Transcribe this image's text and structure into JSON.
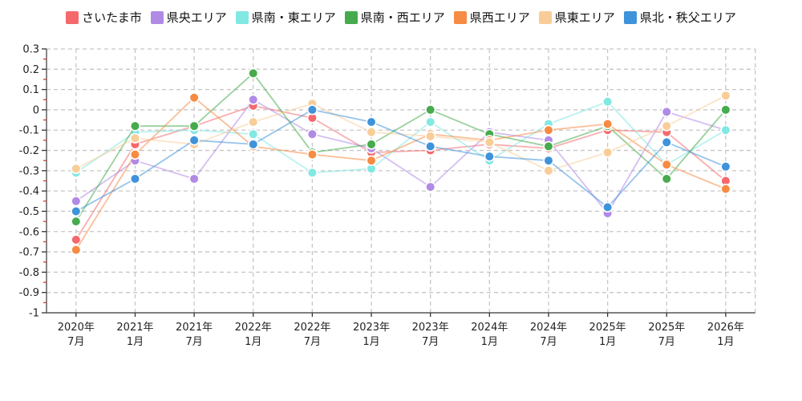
{
  "chart_data": {
    "type": "line",
    "title": "",
    "legend_position": "top",
    "grid": "dashed",
    "x_labels": [
      [
        "2020年",
        "7月"
      ],
      [
        "2021年",
        "1月"
      ],
      [
        "2021年",
        "7月"
      ],
      [
        "2022年",
        "1月"
      ],
      [
        "2022年",
        "7月"
      ],
      [
        "2023年",
        "1月"
      ],
      [
        "2023年",
        "7月"
      ],
      [
        "2024年",
        "1月"
      ],
      [
        "2024年",
        "7月"
      ],
      [
        "2025年",
        "1月"
      ],
      [
        "2025年",
        "7月"
      ],
      [
        "2026年",
        "1月"
      ]
    ],
    "y_ticks": [
      {
        "label": "0.3",
        "value": 0.3
      },
      {
        "label": "0.2",
        "value": 0.2
      },
      {
        "label": "0.1",
        "value": 0.1
      },
      {
        "label": "0",
        "value": 0
      },
      {
        "label": "-0.1",
        "value": -0.1
      },
      {
        "label": "-0.2",
        "value": -0.2
      },
      {
        "label": "-0.3",
        "value": -0.3
      },
      {
        "label": "-0.4",
        "value": -0.4
      },
      {
        "label": "-0.5",
        "value": -0.5
      },
      {
        "label": "-0.6",
        "value": -0.6
      },
      {
        "label": "-0.7",
        "value": -0.7
      },
      {
        "label": "-0.8",
        "value": -0.8
      },
      {
        "label": "-0.9",
        "value": -0.9
      },
      {
        "label": "-1",
        "value": -1
      }
    ],
    "ylim": [
      -1,
      0.3
    ],
    "minor_tick_step": 0.05,
    "minor_tick_color": "#d53a33",
    "axis_color": "#555555",
    "grid_color": "#c6c6c6",
    "series": [
      {
        "name": "さいたま市",
        "color": "#f5696d",
        "values": [
          -0.64,
          -0.17,
          -0.08,
          0.02,
          -0.04,
          -0.21,
          -0.2,
          -0.17,
          -0.19,
          -0.1,
          -0.11,
          -0.35
        ]
      },
      {
        "name": "県央エリア",
        "color": "#b18ae6",
        "values": [
          -0.45,
          -0.25,
          -0.34,
          0.05,
          -0.12,
          -0.19,
          -0.38,
          -0.11,
          -0.15,
          -0.51,
          -0.01,
          -0.1
        ]
      },
      {
        "name": "県南・東エリア",
        "color": "#82e8e2",
        "values": [
          -0.31,
          -0.11,
          -0.1,
          -0.12,
          -0.31,
          -0.29,
          -0.06,
          -0.25,
          -0.07,
          0.04,
          -0.27,
          -0.1
        ]
      },
      {
        "name": "県南・西エリア",
        "color": "#46ab4c",
        "values": [
          -0.55,
          -0.08,
          -0.08,
          0.18,
          -0.21,
          -0.17,
          0.0,
          -0.12,
          -0.18,
          -0.08,
          -0.34,
          0.0
        ]
      },
      {
        "name": "県西エリア",
        "color": "#f68b43",
        "values": [
          -0.69,
          -0.22,
          0.06,
          -0.18,
          -0.22,
          -0.25,
          -0.12,
          -0.15,
          -0.1,
          -0.07,
          -0.27,
          -0.39
        ]
      },
      {
        "name": "県東エリア",
        "color": "#f8cd98",
        "values": [
          -0.29,
          -0.14,
          -0.17,
          -0.06,
          0.03,
          -0.11,
          -0.13,
          -0.16,
          -0.3,
          -0.21,
          -0.08,
          0.07
        ]
      },
      {
        "name": "県北・秩父エリア",
        "color": "#3f93da",
        "values": [
          -0.5,
          -0.34,
          -0.15,
          -0.17,
          0.0,
          -0.06,
          -0.18,
          -0.23,
          -0.25,
          -0.48,
          -0.16,
          -0.28
        ]
      }
    ]
  }
}
